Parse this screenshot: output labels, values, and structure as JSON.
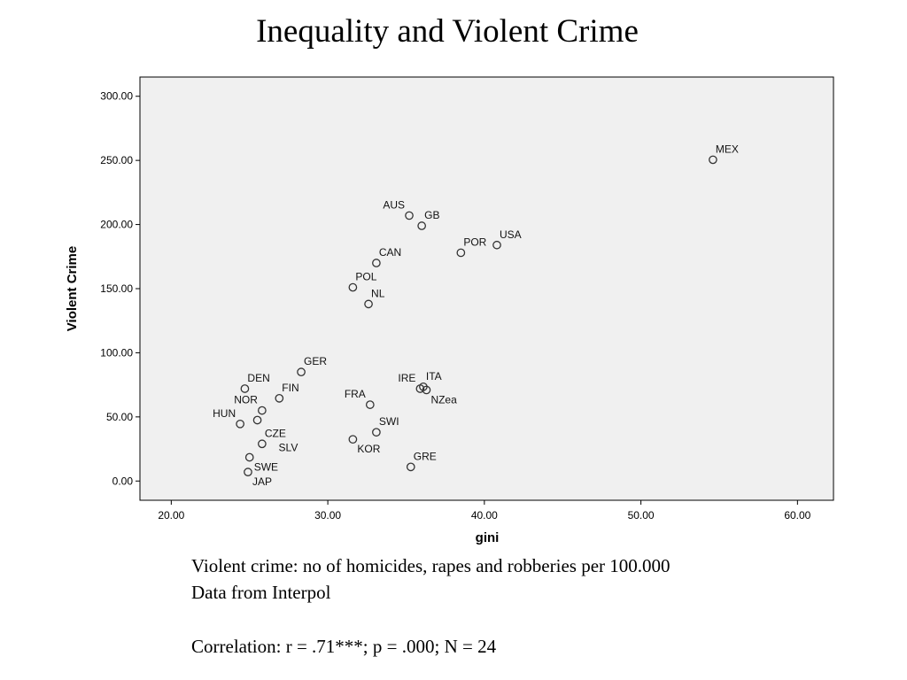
{
  "title": "Inequality and Violent Crime",
  "captions": {
    "definition": "Violent crime: no of homicides, rapes and robberies per 100.000",
    "source": "Data from Interpol",
    "correlation": "Correlation: r = .71***; p = .000; N = 24"
  },
  "chart_data": {
    "type": "scatter",
    "title": "",
    "xlabel": "gini",
    "ylabel": "Violent Crime",
    "xlim": [
      18,
      62.3
    ],
    "ylim": [
      -15,
      315
    ],
    "xticks": [
      20,
      30,
      40,
      50,
      60
    ],
    "yticks": [
      0,
      50,
      100,
      150,
      200,
      250,
      300
    ],
    "xtick_labels": [
      "20.00",
      "30.00",
      "40.00",
      "50.00",
      "60.00"
    ],
    "ytick_labels": [
      "0.00",
      "50.00",
      "100.00",
      "150.00",
      "200.00",
      "250.00",
      "300.00"
    ],
    "grid": false,
    "plot_background": "#f0f0f0",
    "marker_color": "#333333",
    "points": [
      {
        "label": "MEX",
        "x": 54.6,
        "y": 250.5,
        "label_pos": "ne"
      },
      {
        "label": "AUS",
        "x": 35.2,
        "y": 207.0,
        "label_pos": "nw"
      },
      {
        "label": "GB",
        "x": 36.0,
        "y": 199.0,
        "label_pos": "ne"
      },
      {
        "label": "POR",
        "x": 38.5,
        "y": 178.0,
        "label_pos": "ne"
      },
      {
        "label": "USA",
        "x": 40.8,
        "y": 184.0,
        "label_pos": "ne"
      },
      {
        "label": "CAN",
        "x": 33.1,
        "y": 170.0,
        "label_pos": "ne"
      },
      {
        "label": "POL",
        "x": 31.6,
        "y": 151.0,
        "label_pos": "ne"
      },
      {
        "label": "NL",
        "x": 32.6,
        "y": 138.0,
        "label_pos": "ne"
      },
      {
        "label": "GER",
        "x": 28.3,
        "y": 85.0,
        "label_pos": "ne"
      },
      {
        "label": "DEN",
        "x": 24.7,
        "y": 72.0,
        "label_pos": "ne"
      },
      {
        "label": "FIN",
        "x": 26.9,
        "y": 64.5,
        "label_pos": "ne"
      },
      {
        "label": "NOR",
        "x": 25.8,
        "y": 55.0,
        "label_pos": "nw"
      },
      {
        "label": "HUN",
        "x": 24.4,
        "y": 44.5,
        "label_pos": "nw"
      },
      {
        "label": "CZE",
        "x": 25.8,
        "y": 29.0,
        "label_pos": "ne"
      },
      {
        "label": "SLV",
        "x": 25.5,
        "y": 47.5,
        "label_pos": "lower-right"
      },
      {
        "label": "SWE",
        "x": 25.0,
        "y": 18.5,
        "label_pos": "se"
      },
      {
        "label": "JAP",
        "x": 24.9,
        "y": 7.0,
        "label_pos": "se"
      },
      {
        "label": "IRE",
        "x": 35.9,
        "y": 72.0,
        "label_pos": "nw"
      },
      {
        "label": "ITA",
        "x": 36.1,
        "y": 73.5,
        "label_pos": "ne"
      },
      {
        "label": "NZea",
        "x": 36.3,
        "y": 71.0,
        "label_pos": "se"
      },
      {
        "label": "FRA",
        "x": 32.7,
        "y": 59.5,
        "label_pos": "nw"
      },
      {
        "label": "SWI",
        "x": 33.1,
        "y": 38.0,
        "label_pos": "ne"
      },
      {
        "label": "KOR",
        "x": 31.6,
        "y": 32.5,
        "label_pos": "se"
      },
      {
        "label": "GRE",
        "x": 35.3,
        "y": 11.0,
        "label_pos": "ne"
      }
    ]
  }
}
